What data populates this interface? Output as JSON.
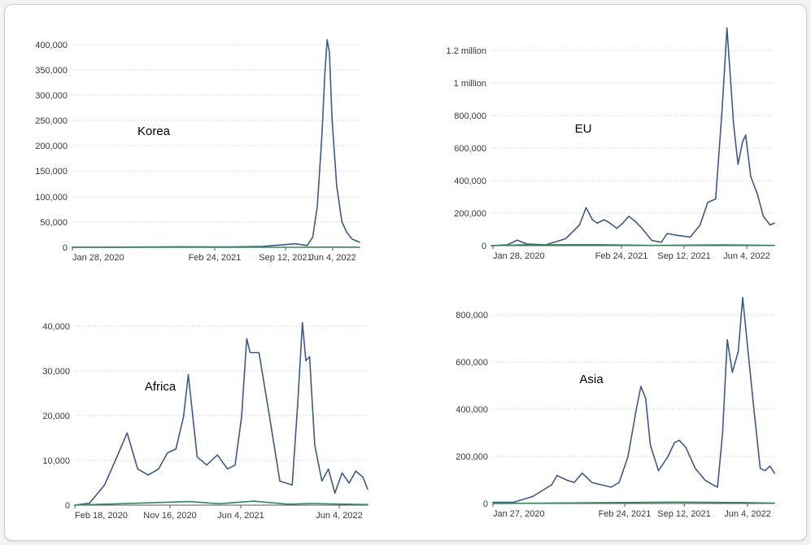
{
  "chart_data": [
    {
      "type": "line",
      "label": "Korea",
      "x_ticks": [
        "Jan 28, 2020",
        "Feb 24, 2021",
        "Sep 12, 2021",
        "Jun 4, 2022"
      ],
      "y_ticks": [
        "0",
        "50,000",
        "100,000",
        "150,000",
        "200,000",
        "250,000",
        "300,000",
        "350,000",
        "400,000"
      ],
      "ylim": [
        0,
        400000
      ],
      "x_range": [
        "Jan 28, 2020",
        "Jun 24, 2022"
      ],
      "grid": true,
      "colors": {
        "cases": "#3d5a8a",
        "deaths": "#2e8b57"
      },
      "series": [
        {
          "x": [
            "2020-01-28",
            "2020-06-01",
            "2020-12-25",
            "2021-06-01",
            "2021-09-01",
            "2021-12-10",
            "2022-01-15",
            "2022-02-01",
            "2022-02-15",
            "2022-03-01",
            "2022-03-10",
            "2022-03-17",
            "2022-03-24",
            "2022-04-01",
            "2022-04-15",
            "2022-05-01",
            "2022-05-15",
            "2022-06-01",
            "2022-06-24"
          ],
          "values": [
            0,
            100,
            900,
            600,
            1800,
            6800,
            3500,
            20000,
            80000,
            220000,
            340000,
            405000,
            380000,
            250000,
            120000,
            50000,
            30000,
            16000,
            10000
          ]
        },
        {
          "x": [
            "2020-01-28",
            "2021-12-15",
            "2022-03-20",
            "2022-06-24"
          ],
          "values": [
            0,
            60,
            350,
            80
          ]
        }
      ]
    },
    {
      "type": "line",
      "label": "EU",
      "x_ticks": [
        "Jan 28, 2020",
        "Feb 24, 2021",
        "Sep 12, 2021",
        "Jun 4, 2022"
      ],
      "y_ticks": [
        "0",
        "200,000",
        "400,000",
        "600,000",
        "800,000",
        "1 million",
        "1.2 million"
      ],
      "ylim": [
        0,
        1200000
      ],
      "x_range": [
        "Jan 10, 2020",
        "Jun 24, 2022"
      ],
      "grid": true,
      "colors": {
        "cases": "#3d5a8a",
        "deaths": "#2e8b57"
      },
      "series": [
        {
          "x": [
            "2020-01-10",
            "2020-03-01",
            "2020-04-01",
            "2020-05-01",
            "2020-07-01",
            "2020-09-01",
            "2020-10-15",
            "2020-11-05",
            "2020-11-25",
            "2020-12-10",
            "2021-01-01",
            "2021-01-20",
            "2021-02-10",
            "2021-03-01",
            "2021-03-20",
            "2021-04-10",
            "2021-05-01",
            "2021-06-01",
            "2021-07-01",
            "2021-07-20",
            "2021-08-20",
            "2021-10-01",
            "2021-11-01",
            "2021-11-25",
            "2021-12-20",
            "2022-01-10",
            "2022-01-25",
            "2022-02-15",
            "2022-03-01",
            "2022-03-15",
            "2022-03-25",
            "2022-04-10",
            "2022-05-01",
            "2022-05-20",
            "2022-06-10",
            "2022-06-24"
          ],
          "values": [
            0,
            5000,
            32000,
            10000,
            5000,
            40000,
            120000,
            220000,
            150000,
            130000,
            150000,
            130000,
            100000,
            130000,
            170000,
            140000,
            100000,
            30000,
            20000,
            70000,
            60000,
            50000,
            120000,
            250000,
            270000,
            800000,
            1260000,
            700000,
            470000,
            600000,
            640000,
            400000,
            300000,
            170000,
            120000,
            130000
          ]
        },
        {
          "x": [
            "2020-01-10",
            "2020-04-05",
            "2020-12-01",
            "2021-06-01",
            "2022-01-20",
            "2022-06-24"
          ],
          "values": [
            0,
            4000,
            5500,
            1200,
            4000,
            1500
          ]
        }
      ]
    },
    {
      "type": "line",
      "label": "Africa",
      "x_ticks": [
        "Feb 18, 2020",
        "Nov 16, 2020",
        "Jun 4, 2021",
        "Jun 4, 2022"
      ],
      "y_ticks": [
        "0",
        "10,000",
        "20,000",
        "30,000",
        "40,000"
      ],
      "ylim": [
        0,
        45000
      ],
      "x_range": [
        "Feb 18, 2020",
        "Jun 24, 2022"
      ],
      "grid": true,
      "colors": {
        "cases": "#3d5a8a",
        "deaths": "#2e8b57"
      },
      "series": [
        {
          "x": [
            "2020-02-18",
            "2020-04-01",
            "2020-05-15",
            "2020-06-20",
            "2020-07-20",
            "2020-08-20",
            "2020-09-20",
            "2020-10-20",
            "2020-11-15",
            "2020-12-10",
            "2021-01-01",
            "2021-01-15",
            "2021-02-10",
            "2021-03-10",
            "2021-04-10",
            "2021-05-10",
            "2021-06-01",
            "2021-06-20",
            "2021-07-05",
            "2021-07-15",
            "2021-08-10",
            "2021-09-10",
            "2021-10-10",
            "2021-11-15",
            "2021-12-01",
            "2021-12-15",
            "2021-12-25",
            "2022-01-05",
            "2022-01-20",
            "2022-02-10",
            "2022-03-01",
            "2022-03-20",
            "2022-04-10",
            "2022-05-01",
            "2022-05-20",
            "2022-06-10",
            "2022-06-24"
          ],
          "values": [
            0,
            500,
            5000,
            12000,
            18000,
            9000,
            7500,
            9000,
            13000,
            14000,
            22000,
            32500,
            12000,
            10000,
            12500,
            9000,
            10000,
            22000,
            41500,
            38000,
            38000,
            22000,
            6000,
            5000,
            25000,
            45500,
            36000,
            37000,
            15000,
            6000,
            9000,
            3000,
            8000,
            5500,
            8500,
            7000,
            4000
          ]
        },
        {
          "x": [
            "2020-02-18",
            "2020-08-01",
            "2021-01-20",
            "2021-04-15",
            "2021-07-25",
            "2021-11-01",
            "2022-01-10",
            "2022-06-24"
          ],
          "values": [
            0,
            450,
            900,
            350,
            1000,
            250,
            400,
            150
          ]
        }
      ]
    },
    {
      "type": "line",
      "label": "Asia",
      "x_ticks": [
        "Jan 27, 2020",
        "Feb 24, 2021",
        "Sep 12, 2021",
        "Jun 4, 2022"
      ],
      "y_ticks": [
        "0",
        "200,000",
        "400,000",
        "600,000",
        "800,000"
      ],
      "ylim": [
        0,
        900000
      ],
      "x_range": [
        "Jan 10, 2020",
        "Jun 24, 2022"
      ],
      "grid": true,
      "colors": {
        "cases": "#3d5a8a",
        "deaths": "#2e8b57"
      },
      "series": [
        {
          "x": [
            "2020-01-10",
            "2020-03-15",
            "2020-05-15",
            "2020-07-15",
            "2020-08-01",
            "2020-09-01",
            "2020-09-25",
            "2020-10-20",
            "2020-11-20",
            "2020-12-20",
            "2021-01-20",
            "2021-02-15",
            "2021-03-15",
            "2021-04-10",
            "2021-04-25",
            "2021-05-10",
            "2021-05-25",
            "2021-06-20",
            "2021-07-20",
            "2021-08-10",
            "2021-08-25",
            "2021-09-15",
            "2021-10-15",
            "2021-11-15",
            "2021-12-10",
            "2021-12-25",
            "2022-01-10",
            "2022-01-25",
            "2022-02-10",
            "2022-03-01",
            "2022-03-15",
            "2022-04-01",
            "2022-04-20",
            "2022-05-10",
            "2022-05-25",
            "2022-06-10",
            "2022-06-24"
          ],
          "values": [
            5000,
            5000,
            30000,
            80000,
            120000,
            100000,
            90000,
            130000,
            90000,
            80000,
            70000,
            90000,
            200000,
            400000,
            500000,
            450000,
            250000,
            140000,
            200000,
            260000,
            270000,
            240000,
            150000,
            100000,
            80000,
            70000,
            300000,
            700000,
            560000,
            650000,
            880000,
            650000,
            400000,
            150000,
            140000,
            160000,
            130000
          ]
        },
        {
          "x": [
            "2020-01-10",
            "2021-05-10",
            "2021-08-20",
            "2022-03-10",
            "2022-06-24"
          ],
          "values": [
            0,
            5000,
            6000,
            4000,
            1500
          ]
        }
      ]
    }
  ]
}
